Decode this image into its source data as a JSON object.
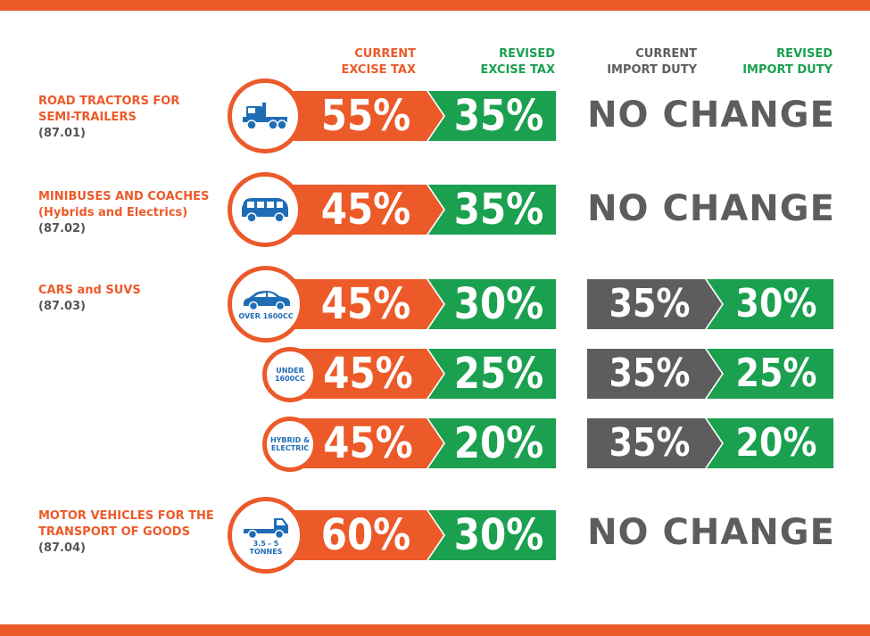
{
  "headers": {
    "current_excise": [
      "CURRENT",
      "EXCISE TAX"
    ],
    "revised_excise": [
      "REVISED",
      "EXCISE TAX"
    ],
    "current_import": [
      "CURRENT",
      "IMPORT DUTY"
    ],
    "revised_import": [
      "REVISED",
      "IMPORT DUTY"
    ]
  },
  "colors": {
    "orange": "#ec5a29",
    "green": "#1aa04f",
    "grey": "#5d5d5d",
    "icon_blue": "#1f6db5"
  },
  "categories": [
    {
      "name_lines": [
        "ROAD TRACTORS FOR",
        "SEMI-TRAILERS"
      ],
      "code": "(87.01)"
    },
    {
      "name_lines": [
        "MINIBUSES AND COACHES",
        "(Hybrids and Electrics)"
      ],
      "code": "(87.02)"
    },
    {
      "name_lines": [
        "CARS and SUVS"
      ],
      "code": "(87.03)"
    },
    {
      "name_lines": [
        "MOTOR VEHICLES FOR THE",
        "TRANSPORT OF GOODS"
      ],
      "code": "(87.04)"
    }
  ],
  "rows": [
    {
      "icon": "truck-tractor-icon",
      "icon_label": [],
      "current_excise": "55%",
      "revised_excise": "35%",
      "import": "NO CHANGE"
    },
    {
      "icon": "minibus-icon",
      "icon_label": [],
      "current_excise": "45%",
      "revised_excise": "35%",
      "import": "NO CHANGE"
    },
    {
      "icon": "car-icon",
      "icon_label": [
        "OVER 1600CC"
      ],
      "current_excise": "45%",
      "revised_excise": "30%",
      "current_import": "35%",
      "revised_import": "30%"
    },
    {
      "icon": "",
      "icon_label": [
        "UNDER",
        "1600CC"
      ],
      "current_excise": "45%",
      "revised_excise": "25%",
      "current_import": "35%",
      "revised_import": "25%"
    },
    {
      "icon": "",
      "icon_label": [
        "HYBRID &",
        "ELECTRIC"
      ],
      "current_excise": "45%",
      "revised_excise": "20%",
      "current_import": "35%",
      "revised_import": "20%"
    },
    {
      "icon": "lorry-icon",
      "icon_label": [
        "3.5 - 5",
        "TONNES"
      ],
      "current_excise": "60%",
      "revised_excise": "30%",
      "import": "NO CHANGE"
    }
  ]
}
